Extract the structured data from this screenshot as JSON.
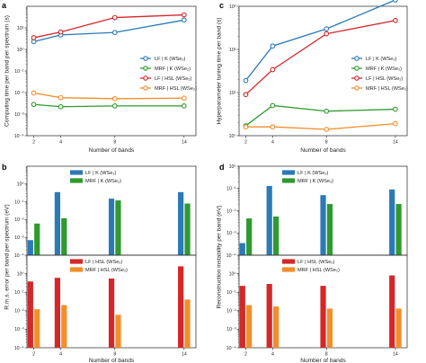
{
  "chart_data": [
    {
      "panel": "a",
      "type": "line",
      "xlabel": "Number of bands",
      "ylabel": "Computing time per band per spectrum (s)",
      "yscale": "log",
      "x": [
        2,
        4,
        8,
        14
      ],
      "x_ticks": [
        "2",
        "4",
        "8",
        "14"
      ],
      "ylim_exp": [
        -4,
        2
      ],
      "y_ticks": [
        "10⁻⁴",
        "10⁻³",
        "10⁻²",
        "10⁻¹",
        "10⁰",
        "10¹"
      ],
      "legend_position": "right",
      "series": [
        {
          "name": "LF | K (WSe₂)",
          "color": "#2a7ab8",
          "values": [
            2.3,
            4.7,
            6.1,
            23
          ]
        },
        {
          "name": "MRF | K (WSe₂)",
          "color": "#2f9a2f",
          "values": [
            0.0028,
            0.0022,
            0.0024,
            0.0024
          ]
        },
        {
          "name": "LF | HSL (WSe₂)",
          "color": "#d62728",
          "values": [
            3.5,
            6.4,
            30,
            40
          ]
        },
        {
          "name": "MRF | HSL (WSe₂)",
          "color": "#f28e2b",
          "values": [
            0.0095,
            0.0058,
            0.0052,
            0.0055
          ]
        }
      ]
    },
    {
      "panel": "c",
      "type": "line",
      "xlabel": "Number of bands",
      "ylabel": "Hyperparameter tuning time per band (s)",
      "yscale": "log",
      "x": [
        2,
        4,
        8,
        14
      ],
      "x_ticks": [
        "2",
        "4",
        "8",
        "14"
      ],
      "ylim_exp": [
        0,
        3
      ],
      "y_ticks": [
        "10⁰",
        "10¹",
        "10²",
        "10³"
      ],
      "legend_position": "right",
      "series": [
        {
          "name": "LF | K (WSe₂)",
          "color": "#2a7ab8",
          "values": [
            19,
            120,
            300,
            1400
          ]
        },
        {
          "name": "MRF | K (WSe₂)",
          "color": "#2f9a2f",
          "values": [
            1.7,
            5,
            3.7,
            4.1
          ]
        },
        {
          "name": "LF | HSL (WSe₂)",
          "color": "#d62728",
          "values": [
            9,
            34,
            230,
            470
          ]
        },
        {
          "name": "MRF | HSL (WSe₂)",
          "color": "#f28e2b",
          "values": [
            1.6,
            1.6,
            1.4,
            1.9
          ]
        }
      ]
    },
    {
      "panel": "b",
      "type": "bar",
      "xlabel": "Number of bands",
      "ylabel": "R.m.s. error per band per spectrum (eV)",
      "yscale": "log",
      "categories": [
        "2",
        "4",
        "8",
        "14"
      ],
      "upper": {
        "ylim_exp": [
          -4,
          1
        ],
        "y_ticks": [
          "10⁻⁴",
          "10⁻³",
          "10⁻²",
          "10⁻¹",
          "10⁰"
        ],
        "series": [
          {
            "name": "LF | K (WSe₂)",
            "color": "#2a7ab8",
            "values": [
              0.0007,
              0.35,
              0.15,
              0.35
            ]
          },
          {
            "name": "MRF | K (WSe₂)",
            "color": "#2f9a2f",
            "values": [
              0.006,
              0.012,
              0.12,
              0.08
            ]
          }
        ]
      },
      "lower": {
        "ylim_exp": [
          -4,
          1
        ],
        "y_ticks": [
          "10⁻⁴",
          "10⁻³",
          "10⁻²",
          "10⁻¹",
          "10⁰"
        ],
        "series": [
          {
            "name": "LF | HSL (WSe₂)",
            "color": "#d62728",
            "values": [
              0.38,
              0.6,
              0.55,
              2.5
            ]
          },
          {
            "name": "MRF | HSL (WSe₂)",
            "color": "#f28e2b",
            "values": [
              0.012,
              0.02,
              0.006,
              0.04
            ]
          }
        ]
      }
    },
    {
      "panel": "d",
      "type": "bar",
      "xlabel": "Number of bands",
      "ylabel": "Reconstruction instability per band (eV)",
      "yscale": "log",
      "categories": [
        "2",
        "4",
        "8",
        "14"
      ],
      "upper": {
        "ylim_exp": [
          -4,
          0
        ],
        "y_ticks": [
          "10⁻⁴",
          "10⁻³",
          "10⁻²",
          "10⁻¹",
          "10⁰"
        ],
        "series": [
          {
            "name": "LF | K (WSe₂)",
            "color": "#2a7ab8",
            "values": [
              0.00035,
              0.13,
              0.05,
              0.09
            ]
          },
          {
            "name": "MRF | K (WSe₂)",
            "color": "#2f9a2f",
            "values": [
              0.0045,
              0.0055,
              0.02,
              0.02
            ]
          }
        ]
      },
      "lower": {
        "ylim_exp": [
          -4,
          1
        ],
        "y_ticks": [
          "10⁻⁴",
          "10⁻³",
          "10⁻²",
          "10⁻¹",
          "10⁰"
        ],
        "series": [
          {
            "name": "LF | HSL (WSe₂)",
            "color": "#d62728",
            "values": [
              0.22,
              0.28,
              0.22,
              0.8
            ]
          },
          {
            "name": "MRF | HSL (WSe₂)",
            "color": "#f28e2b",
            "values": [
              0.02,
              0.017,
              0.013,
              0.013
            ]
          }
        ]
      }
    }
  ]
}
